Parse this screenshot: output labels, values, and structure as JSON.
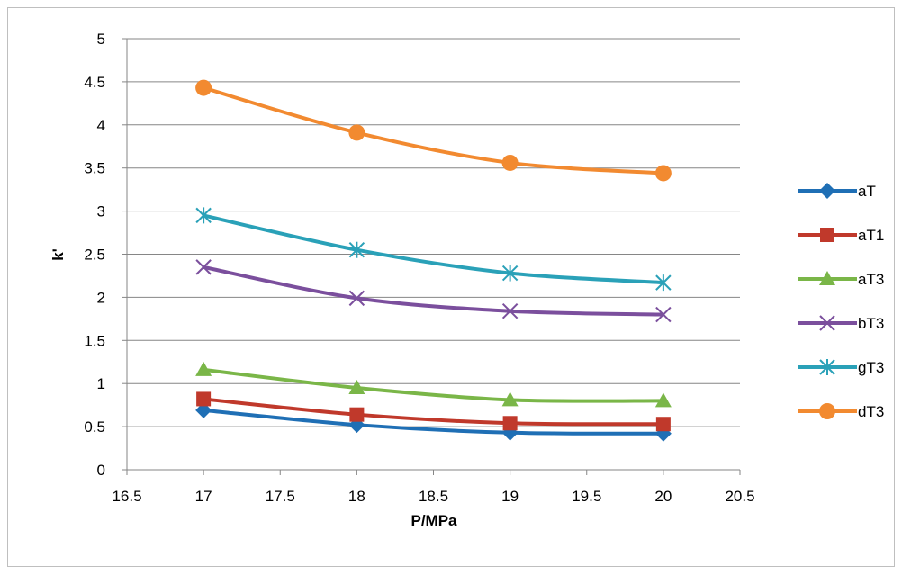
{
  "chart_data": {
    "type": "line",
    "title": "",
    "xlabel": "P/MPa",
    "ylabel": "k'",
    "xlim": [
      16.5,
      20.5
    ],
    "ylim": [
      0,
      5
    ],
    "xticks": [
      "16.5",
      "17",
      "17.5",
      "18",
      "18.5",
      "19",
      "19.5",
      "20",
      "20.5"
    ],
    "yticks": [
      "0",
      "0.5",
      "1",
      "1.5",
      "2",
      "2.5",
      "3",
      "3.5",
      "4",
      "4.5",
      "5"
    ],
    "grid": true,
    "legend_position": "right",
    "smooth": true,
    "x": [
      17,
      18,
      19,
      20
    ],
    "series": [
      {
        "name": "aT",
        "values": [
          0.69,
          0.52,
          0.43,
          0.42
        ],
        "color": "#1f6fb5",
        "marker": "diamond"
      },
      {
        "name": "aT1",
        "values": [
          0.82,
          0.64,
          0.54,
          0.53
        ],
        "color": "#c0392b",
        "marker": "square"
      },
      {
        "name": "aT3",
        "values": [
          1.16,
          0.95,
          0.81,
          0.8
        ],
        "color": "#7ab648",
        "marker": "triangle"
      },
      {
        "name": "bT3",
        "values": [
          2.35,
          1.99,
          1.84,
          1.8
        ],
        "color": "#7b4f9d",
        "marker": "x"
      },
      {
        "name": "gT3",
        "values": [
          2.95,
          2.55,
          2.28,
          2.17
        ],
        "color": "#2aa1b8",
        "marker": "star"
      },
      {
        "name": "dT3",
        "values": [
          4.43,
          3.91,
          3.56,
          3.44
        ],
        "color": "#f28a30",
        "marker": "circle"
      }
    ]
  }
}
